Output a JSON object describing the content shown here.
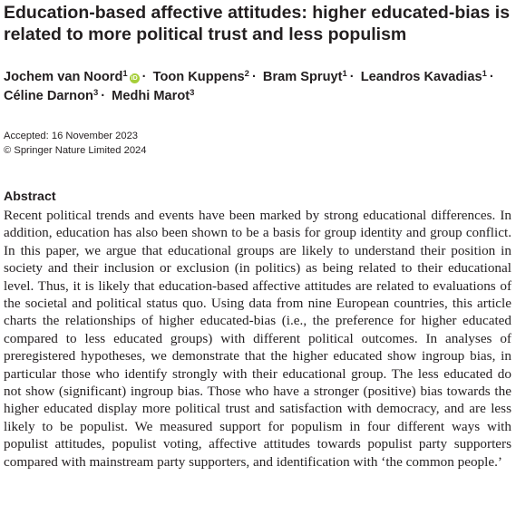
{
  "paper": {
    "title": "Education-based affective attitudes: higher educated-bias is related to more political trust and less populism",
    "authors": [
      {
        "name": "Jochem van Noord",
        "affiliation": "1",
        "orcid": true
      },
      {
        "name": "Toon Kuppens",
        "affiliation": "2",
        "orcid": false
      },
      {
        "name": "Bram Spruyt",
        "affiliation": "1",
        "orcid": false
      },
      {
        "name": "Leandros Kavadias",
        "affiliation": "1",
        "orcid": false
      },
      {
        "name": "Céline Darnon",
        "affiliation": "3",
        "orcid": false
      },
      {
        "name": "Medhi Marot",
        "affiliation": "3",
        "orcid": false
      }
    ],
    "accepted": "Accepted: 16 November 2023",
    "copyright": "© Springer Nature Limited 2024",
    "abstract_heading": "Abstract",
    "abstract": "Recent political trends and events have been marked by strong educational differences. In addition, education has also been shown to be a basis for group identity and group conflict. In this paper, we argue that educational groups are likely to understand their position in society and their inclusion or exclusion (in politics) as being related to their educational level. Thus, it is likely that education-based affective attitudes are related to evaluations of the societal and political status quo. Using data from nine European countries, this article charts the relationships of higher educated-bias (i.e., the preference for higher educated compared to less educated groups) with different political outcomes. In analyses of preregistered hypotheses, we demonstrate that the higher educated show ingroup bias, in particular those who identify strongly with their educational group. The less educated do not show (significant) ingroup bias. Those who have a stronger (positive) bias towards the higher educated display more political trust and satisfaction with democracy, and are less likely to be populist. We measured support for populism in four different ways with populist attitudes, populist voting, affective attitudes towards populist party supporters compared with mainstream party supporters, and identification with ‘the common people.’",
    "separator": "·",
    "orcid_icon": "orcid-icon",
    "orcid_color": "#a6ce39"
  }
}
